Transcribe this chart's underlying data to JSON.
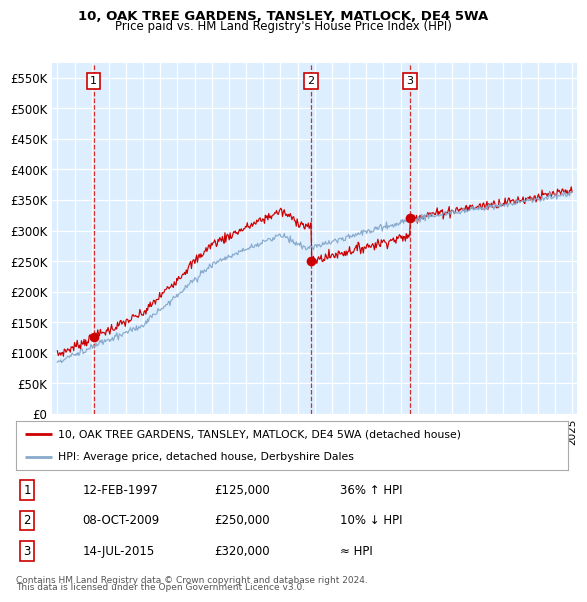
{
  "title1": "10, OAK TREE GARDENS, TANSLEY, MATLOCK, DE4 5WA",
  "title2": "Price paid vs. HM Land Registry's House Price Index (HPI)",
  "ylabel_ticks": [
    "£0",
    "£50K",
    "£100K",
    "£150K",
    "£200K",
    "£250K",
    "£300K",
    "£350K",
    "£400K",
    "£450K",
    "£500K",
    "£550K"
  ],
  "ytick_vals": [
    0,
    50000,
    100000,
    150000,
    200000,
    250000,
    300000,
    350000,
    400000,
    450000,
    500000,
    550000
  ],
  "xmin": 1994.7,
  "xmax": 2025.3,
  "ymin": 0,
  "ymax": 575000,
  "fig_bg": "#ffffff",
  "plot_bg": "#ddeeff",
  "grid_color": "#ffffff",
  "sale1_year": 1997.11,
  "sale1_price": 125000,
  "sale2_year": 2009.78,
  "sale2_price": 250000,
  "sale3_year": 2015.54,
  "sale3_price": 320000,
  "red_line_color": "#cc0000",
  "blue_line_color": "#88aacc",
  "dashed_color": "#cc0000",
  "legend_label1": "10, OAK TREE GARDENS, TANSLEY, MATLOCK, DE4 5WA (detached house)",
  "legend_label2": "HPI: Average price, detached house, Derbyshire Dales",
  "table_rows": [
    [
      "1",
      "12-FEB-1997",
      "£125,000",
      "36% ↑ HPI"
    ],
    [
      "2",
      "08-OCT-2009",
      "£250,000",
      "10% ↓ HPI"
    ],
    [
      "3",
      "14-JUL-2015",
      "£320,000",
      "≈ HPI"
    ]
  ],
  "footnote1": "Contains HM Land Registry data © Crown copyright and database right 2024.",
  "footnote2": "This data is licensed under the Open Government Licence v3.0."
}
